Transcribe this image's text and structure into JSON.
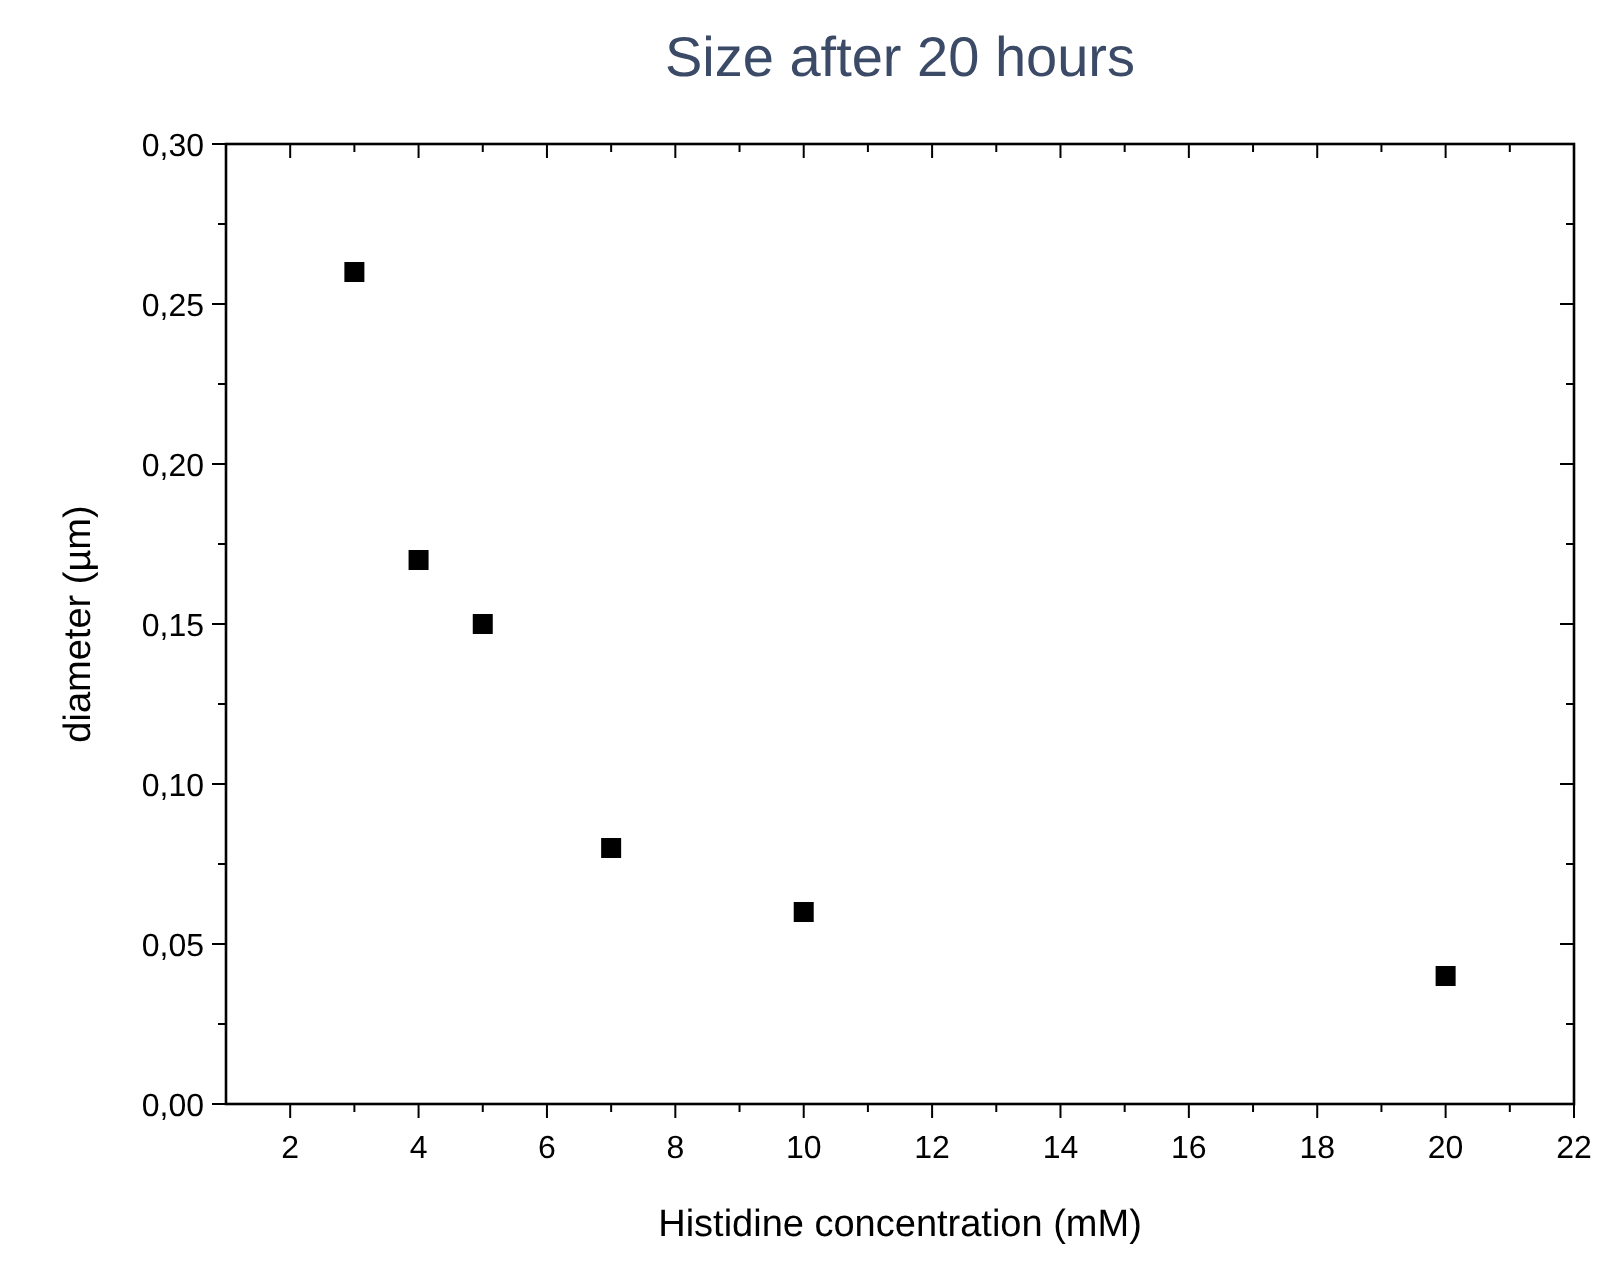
{
  "chart_data": {
    "type": "scatter",
    "title": "Size after 20 hours",
    "xlabel": "Histidine concentration (mM)",
    "ylabel": "diameter (µm)",
    "x": [
      3,
      4,
      5,
      7,
      10,
      20
    ],
    "series": [
      {
        "color": "#000000",
        "values": [
          0.26,
          0.17,
          0.15,
          0.08,
          0.06,
          0.04
        ]
      }
    ],
    "marker": "square",
    "xlim": [
      1,
      22
    ],
    "xticks": [
      2,
      4,
      6,
      8,
      10,
      12,
      14,
      16,
      18,
      20,
      22,
      {
        "value": 3,
        "label": null
      },
      {
        "value": 5,
        "label": null
      },
      {
        "value": 7,
        "label": null
      },
      {
        "value": 9,
        "label": null
      },
      {
        "value": 11,
        "label": null
      },
      {
        "value": 13,
        "label": null
      },
      {
        "value": 15,
        "label": null
      },
      {
        "value": 17,
        "label": null
      },
      {
        "value": 19,
        "label": null
      },
      {
        "value": 21,
        "label": null
      }
    ],
    "ylim": [
      0,
      0.3
    ],
    "yticks": [
      {
        "value": 0,
        "label": "0,00"
      },
      {
        "value": 0.05,
        "label": "0,05"
      },
      {
        "value": 0.1,
        "label": "0,10"
      },
      {
        "value": 0.15,
        "label": "0,15"
      },
      {
        "value": 0.2,
        "label": "0,20"
      },
      {
        "value": 0.25,
        "label": "0,25"
      },
      {
        "value": 0.3,
        "label": "0,30"
      },
      {
        "value": 0.025,
        "label": null
      },
      {
        "value": 0.075,
        "label": null
      },
      {
        "value": 0.125,
        "label": null
      },
      {
        "value": 0.175,
        "label": null
      },
      {
        "value": 0.225,
        "label": null
      },
      {
        "value": 0.275,
        "label": null
      }
    ]
  }
}
